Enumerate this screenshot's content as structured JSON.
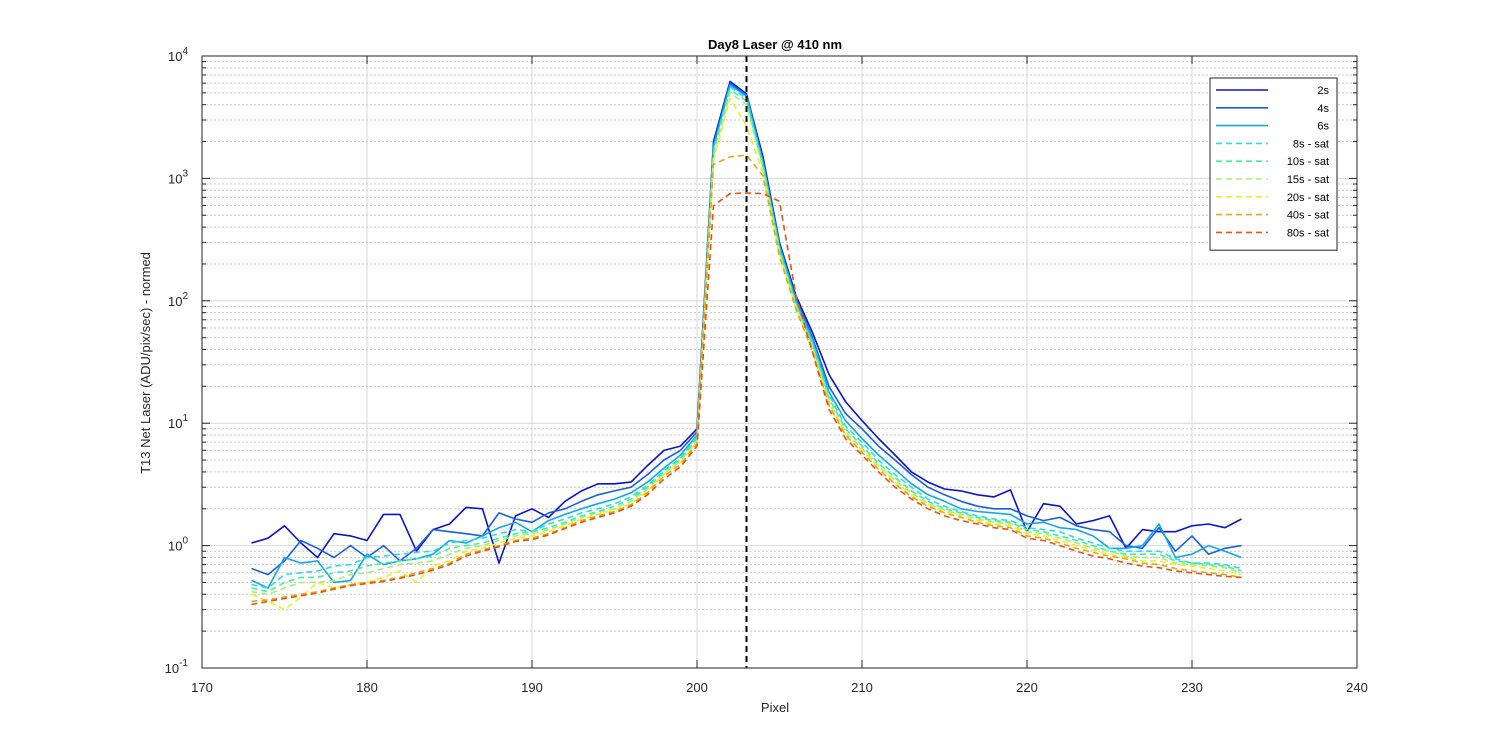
{
  "chart_data": {
    "type": "line",
    "title": "Day8 Laser @ 410 nm",
    "xlabel": "Pixel",
    "ylabel": "T13 Net Laser (ADU/pix/sec) - normed",
    "xlim": [
      170,
      240
    ],
    "ylim": [
      0.1,
      10000
    ],
    "yscale": "log",
    "grid": true,
    "legend_position": "top-right",
    "x_ticks": [
      "170",
      "180",
      "190",
      "200",
      "210",
      "220",
      "230",
      "240"
    ],
    "y_ticks": [
      {
        "base": "10",
        "exp": "-1"
      },
      {
        "base": "10",
        "exp": "0"
      },
      {
        "base": "10",
        "exp": "1"
      },
      {
        "base": "10",
        "exp": "2"
      },
      {
        "base": "10",
        "exp": "3"
      },
      {
        "base": "10",
        "exp": "4"
      }
    ],
    "vline_x": 203,
    "x": [
      173,
      174,
      175,
      176,
      177,
      178,
      179,
      180,
      181,
      182,
      183,
      184,
      185,
      186,
      187,
      188,
      189,
      190,
      191,
      192,
      193,
      194,
      195,
      196,
      197,
      198,
      199,
      200,
      201,
      202,
      203,
      204,
      205,
      206,
      207,
      208,
      209,
      210,
      211,
      212,
      213,
      214,
      215,
      216,
      217,
      218,
      219,
      220,
      221,
      222,
      223,
      224,
      225,
      226,
      227,
      228,
      229,
      230,
      231,
      232,
      233
    ],
    "series": [
      {
        "name": "2s",
        "color": "#0a14d0",
        "dash": false,
        "values": [
          1.05,
          1.15,
          1.45,
          1.05,
          0.8,
          1.25,
          1.2,
          1.1,
          1.8,
          1.8,
          0.9,
          1.35,
          1.5,
          2.05,
          2.0,
          0.72,
          1.75,
          2.0,
          1.7,
          2.3,
          2.8,
          3.2,
          3.2,
          3.3,
          4.5,
          6.0,
          6.5,
          9.0,
          2000,
          6200,
          4900,
          1500,
          300,
          110,
          55,
          25,
          15,
          10.5,
          7.5,
          5.5,
          4.0,
          3.3,
          2.9,
          2.8,
          2.6,
          2.5,
          2.85,
          1.3,
          2.2,
          2.1,
          1.5,
          1.6,
          1.75,
          0.95,
          1.35,
          1.3,
          1.3,
          1.45,
          1.5,
          1.4,
          1.65
        ]
      },
      {
        "name": "4s",
        "color": "#1a5ee8",
        "dash": false,
        "values": [
          0.65,
          0.58,
          0.75,
          1.1,
          0.95,
          0.8,
          1.0,
          0.8,
          1.0,
          0.75,
          0.95,
          1.35,
          1.3,
          1.25,
          1.2,
          1.85,
          1.65,
          1.55,
          1.85,
          2.0,
          2.3,
          2.6,
          2.8,
          3.0,
          3.8,
          5.0,
          6.0,
          8.5,
          1900,
          6000,
          4800,
          1400,
          290,
          105,
          50,
          20,
          12,
          9,
          6.5,
          5,
          3.8,
          3,
          2.6,
          2.3,
          2.1,
          2.0,
          2.0,
          1.75,
          1.6,
          1.7,
          1.45,
          1.35,
          1.3,
          1.0,
          0.95,
          1.4,
          0.9,
          1.2,
          0.85,
          0.95,
          1.0
        ]
      },
      {
        "name": "6s",
        "color": "#12a8f0",
        "dash": false,
        "values": [
          0.52,
          0.45,
          0.8,
          0.72,
          0.75,
          0.5,
          0.52,
          0.85,
          0.7,
          0.75,
          0.78,
          0.85,
          1.1,
          1.05,
          1.2,
          1.4,
          1.55,
          1.3,
          1.6,
          1.8,
          2.0,
          2.2,
          2.4,
          2.7,
          3.3,
          4.3,
          5.5,
          8.0,
          1800,
          5800,
          4700,
          1350,
          280,
          100,
          48,
          18,
          10.5,
          7.5,
          5.5,
          4.2,
          3.2,
          2.6,
          2.3,
          2.0,
          1.9,
          1.85,
          1.8,
          1.5,
          1.55,
          1.4,
          1.35,
          1.2,
          0.95,
          0.95,
          1.0,
          1.5,
          0.8,
          0.85,
          1.0,
          0.9,
          0.8
        ]
      },
      {
        "name": "8s - sat",
        "color": "#28e0e0",
        "dash": true,
        "values": [
          0.48,
          0.45,
          0.58,
          0.6,
          0.62,
          0.68,
          0.7,
          0.8,
          0.82,
          0.85,
          0.88,
          0.9,
          1.05,
          1.1,
          1.15,
          1.25,
          1.35,
          1.3,
          1.5,
          1.65,
          1.85,
          2.0,
          2.2,
          2.5,
          3.1,
          4.1,
          5.2,
          7.8,
          1700,
          5600,
          4500,
          1300,
          270,
          95,
          46,
          17,
          9.5,
          7,
          5,
          3.8,
          3.0,
          2.4,
          2.1,
          1.9,
          1.75,
          1.65,
          1.6,
          1.4,
          1.35,
          1.3,
          1.15,
          1.05,
          0.95,
          0.9,
          0.9,
          0.9,
          0.78,
          0.72,
          0.72,
          0.7,
          0.65
        ]
      },
      {
        "name": "10s - sat",
        "color": "#40f0a0",
        "dash": true,
        "values": [
          0.45,
          0.42,
          0.5,
          0.55,
          0.55,
          0.6,
          0.62,
          0.68,
          0.72,
          0.75,
          0.78,
          0.82,
          0.95,
          1.0,
          1.05,
          1.15,
          1.25,
          1.3,
          1.4,
          1.55,
          1.75,
          1.9,
          2.1,
          2.4,
          3.0,
          4.0,
          5.0,
          7.5,
          1600,
          5300,
          4300,
          1250,
          260,
          92,
          44,
          16,
          9,
          6.5,
          4.7,
          3.6,
          2.8,
          2.3,
          2.0,
          1.85,
          1.7,
          1.6,
          1.55,
          1.35,
          1.3,
          1.2,
          1.1,
          1.0,
          0.9,
          0.85,
          0.85,
          0.85,
          0.75,
          0.72,
          0.7,
          0.68,
          0.62
        ]
      },
      {
        "name": "15s - sat",
        "color": "#a8f070",
        "dash": true,
        "values": [
          0.42,
          0.4,
          0.45,
          0.5,
          0.5,
          0.52,
          0.58,
          0.6,
          0.65,
          0.7,
          0.72,
          0.75,
          0.85,
          0.95,
          1.0,
          1.1,
          1.2,
          1.25,
          1.35,
          1.5,
          1.7,
          1.85,
          2.0,
          2.3,
          2.9,
          3.9,
          4.9,
          7.2,
          1500,
          5000,
          4000,
          1200,
          250,
          90,
          42,
          15,
          8.5,
          6.2,
          4.5,
          3.4,
          2.7,
          2.2,
          1.95,
          1.8,
          1.65,
          1.55,
          1.5,
          1.3,
          1.25,
          1.15,
          1.05,
          0.95,
          0.9,
          0.82,
          0.8,
          0.8,
          0.72,
          0.7,
          0.68,
          0.66,
          0.6
        ]
      },
      {
        "name": "20s - sat",
        "color": "#f0f020",
        "dash": true,
        "values": [
          0.4,
          0.35,
          0.3,
          0.38,
          0.5,
          0.45,
          0.48,
          0.5,
          0.55,
          0.62,
          0.5,
          0.68,
          0.75,
          0.9,
          0.95,
          1.05,
          1.15,
          1.2,
          1.3,
          1.45,
          1.65,
          1.8,
          1.95,
          2.2,
          2.8,
          3.8,
          4.8,
          7.0,
          1400,
          4500,
          2700,
          1100,
          240,
          88,
          40,
          14.5,
          8.2,
          6,
          4.4,
          3.3,
          2.6,
          2.15,
          1.9,
          1.75,
          1.6,
          1.5,
          1.45,
          1.25,
          1.2,
          1.1,
          1.0,
          0.92,
          0.85,
          0.8,
          0.75,
          0.75,
          0.7,
          0.68,
          0.65,
          0.62,
          0.58
        ]
      },
      {
        "name": "40s - sat",
        "color": "#e0a818",
        "dash": true,
        "values": [
          0.35,
          0.36,
          0.38,
          0.4,
          0.42,
          0.45,
          0.48,
          0.5,
          0.52,
          0.55,
          0.6,
          0.65,
          0.72,
          0.85,
          0.92,
          1.0,
          1.1,
          1.15,
          1.25,
          1.4,
          1.6,
          1.75,
          1.9,
          2.15,
          2.7,
          3.7,
          4.6,
          6.8,
          1300,
          1500,
          1550,
          1050,
          230,
          85,
          39,
          14,
          8,
          5.8,
          4.2,
          3.2,
          2.5,
          2.1,
          1.85,
          1.7,
          1.55,
          1.45,
          1.4,
          1.2,
          1.15,
          1.05,
          0.95,
          0.88,
          0.82,
          0.78,
          0.72,
          0.7,
          0.65,
          0.62,
          0.6,
          0.58,
          0.55
        ]
      },
      {
        "name": "80s - sat",
        "color": "#f05010",
        "dash": true,
        "values": [
          0.33,
          0.35,
          0.37,
          0.39,
          0.41,
          0.44,
          0.47,
          0.49,
          0.51,
          0.54,
          0.58,
          0.63,
          0.7,
          0.82,
          0.9,
          0.98,
          1.08,
          1.12,
          1.22,
          1.38,
          1.55,
          1.7,
          1.85,
          2.1,
          2.6,
          3.5,
          4.4,
          6.5,
          600,
          750,
          760,
          750,
          650,
          110,
          38,
          13,
          7.5,
          5.5,
          4.0,
          3.0,
          2.4,
          2.0,
          1.75,
          1.6,
          1.5,
          1.4,
          1.35,
          1.15,
          1.1,
          1.0,
          0.9,
          0.82,
          0.78,
          0.72,
          0.68,
          0.66,
          0.62,
          0.6,
          0.58,
          0.56,
          0.55
        ]
      }
    ]
  }
}
